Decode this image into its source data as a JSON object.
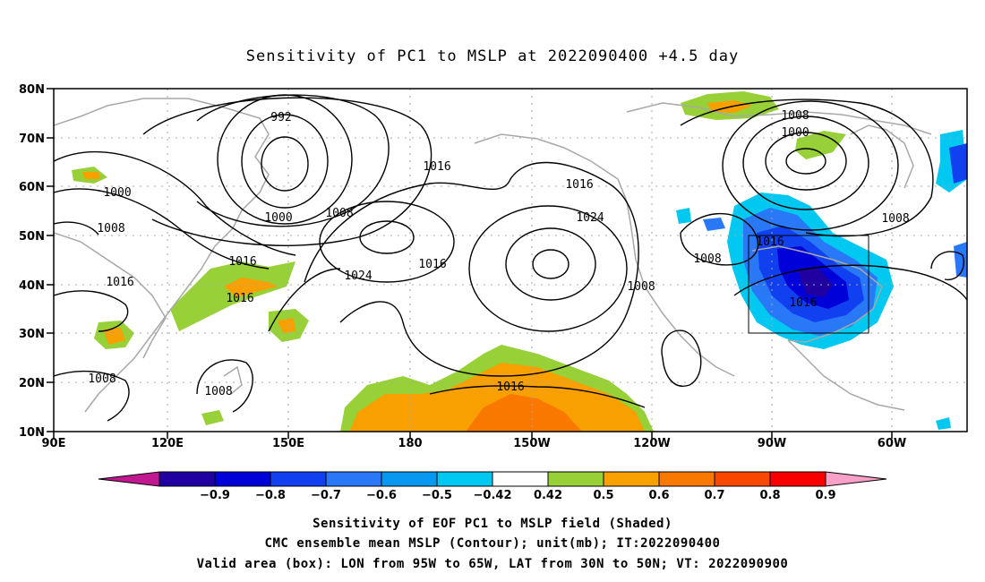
{
  "title": "Sensitivity of PC1 to MSLP at 2022090400 +4.5 day",
  "map": {
    "lon_labels": [
      "90E",
      "120E",
      "150E",
      "180",
      "150W",
      "120W",
      "90W",
      "60W"
    ],
    "lat_labels": [
      "80N",
      "70N",
      "60N",
      "50N",
      "40N",
      "30N",
      "20N",
      "10N"
    ],
    "contour_labels": [
      "992",
      "1000",
      "1000",
      "1008",
      "1008",
      "1016",
      "1016",
      "1016",
      "1016",
      "1024",
      "1024",
      "1016",
      "1016",
      "1008",
      "1016",
      "1016",
      "1008",
      "1008",
      "1008",
      "1000",
      "1008",
      "1016",
      "1008"
    ],
    "valid_box": {
      "lon_min": "95W",
      "lon_max": "65W",
      "lat_min": "30N",
      "lat_max": "50N"
    }
  },
  "colorbar": {
    "labels": [
      "-0.9",
      "-0.8",
      "-0.7",
      "-0.6",
      "-0.5",
      "-0.42",
      "0.42",
      "0.5",
      "0.6",
      "0.7",
      "0.8",
      "0.9"
    ],
    "colors": [
      "#2000a0",
      "#0000d8",
      "#1040f0",
      "#2878f8",
      "#0898f0",
      "#00c8f0",
      "#ffffff",
      "#98d038",
      "#f8a000",
      "#f87800",
      "#f84800",
      "#f80000"
    ],
    "end_low_color": "#c01890",
    "end_high_color": "#f8a0c8"
  },
  "captions": {
    "line1": "Sensitivity of EOF PC1 to MSLP field (Shaded)",
    "line2": "CMC ensemble mean MSLP (Contour); unit(mb); IT:2022090400",
    "line3": "Valid area (box): LON from 95W to 65W, LAT from 30N to 50N; VT: 2022090900"
  }
}
